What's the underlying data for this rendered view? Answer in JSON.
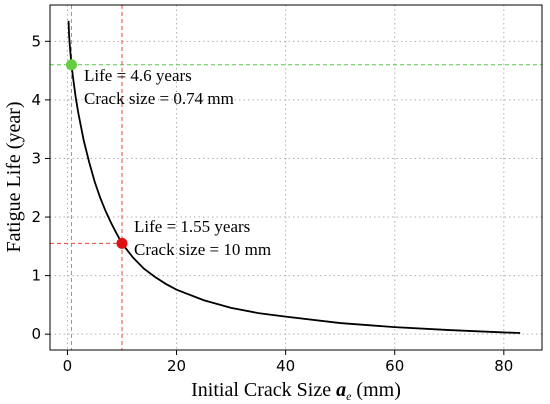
{
  "chart_data": {
    "type": "line",
    "xlabel": "Initial Crack Size",
    "xlabel_symbol": "a",
    "xlabel_subscript": "e",
    "xlabel_unit": "(mm)",
    "ylabel": "Fatigue Life (year)",
    "xlim": [
      -3.2,
      87
    ],
    "ylim": [
      -0.27,
      5.62
    ],
    "xticks": [
      0,
      20,
      40,
      60,
      80
    ],
    "yticks": [
      0,
      1,
      2,
      3,
      4,
      5
    ],
    "grid": true,
    "series": [
      {
        "color": "#000000",
        "x": [
          0.2,
          0.3,
          0.5,
          0.74,
          1,
          1.5,
          2,
          3,
          4,
          5,
          6,
          7,
          8,
          9,
          10,
          12,
          14,
          16,
          18,
          20,
          25,
          30,
          35,
          40,
          50,
          60,
          70,
          80,
          83
        ],
        "y": [
          5.35,
          5.1,
          4.85,
          4.6,
          4.4,
          4.05,
          3.77,
          3.3,
          2.93,
          2.6,
          2.33,
          2.1,
          1.9,
          1.72,
          1.55,
          1.31,
          1.12,
          0.98,
          0.86,
          0.76,
          0.58,
          0.45,
          0.36,
          0.3,
          0.19,
          0.12,
          0.07,
          0.03,
          0.02
        ]
      }
    ],
    "points": [
      {
        "x": 0.74,
        "y": 4.6,
        "color": "#66cc44",
        "guide_color": "#55cc44",
        "label_line1": "Life = 4.6 years",
        "label_line2": "Crack size = 0.74 mm"
      },
      {
        "x": 10,
        "y": 1.55,
        "color": "#dd1111",
        "guide_color": "#ee4433",
        "label_line1": "Life = 1.55 years",
        "label_line2": "Crack size = 10 mm"
      }
    ]
  }
}
